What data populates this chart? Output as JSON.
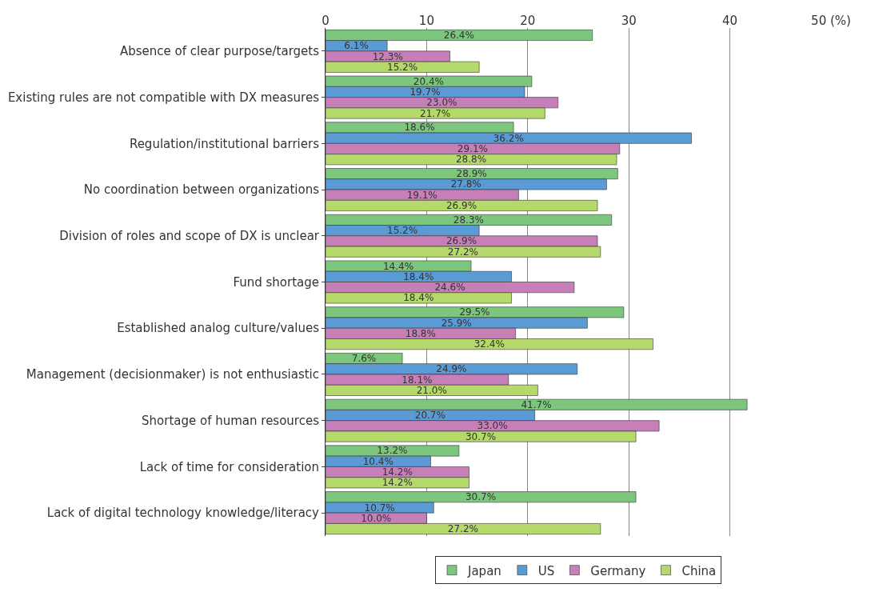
{
  "chart_data": {
    "type": "bar",
    "orientation": "horizontal",
    "categories": [
      "Absence of clear purpose/targets",
      "Existing rules are not compatible with DX measures",
      "Regulation/institutional barriers",
      "No coordination between organizations",
      "Division of roles and scope of DX is unclear",
      "Fund shortage",
      "Established analog culture/values",
      "Management (decisionmaker) is not enthusiastic",
      "Shortage of human resources",
      "Lack of time for consideration",
      "Lack of digital technology knowledge/literacy"
    ],
    "series": [
      {
        "name": "Japan",
        "color": "#7dc67d",
        "values": [
          26.4,
          20.4,
          18.6,
          28.9,
          28.3,
          14.4,
          29.5,
          7.6,
          41.7,
          13.2,
          30.7
        ],
        "value_labels": [
          "26.4%",
          "20.4%",
          "18.6%",
          "28.9%",
          "28.3%",
          "14.4%",
          "29.5%",
          "7.6%",
          "41.7%",
          "13.2%",
          "30.7%"
        ]
      },
      {
        "name": "US",
        "color": "#5b9bd5",
        "values": [
          6.1,
          19.7,
          36.2,
          27.8,
          15.2,
          18.4,
          25.9,
          24.9,
          20.7,
          10.4,
          10.7
        ],
        "value_labels": [
          "6.1%",
          "19.7%",
          "36.2%",
          "27.8%",
          "15.2%",
          "18.4%",
          "25.9%",
          "24.9%",
          "20.7%",
          "10.4%",
          "10.7%"
        ]
      },
      {
        "name": "Germany",
        "color": "#c77fb8",
        "values": [
          12.3,
          23.0,
          29.1,
          19.1,
          26.9,
          24.6,
          18.8,
          18.1,
          33.0,
          14.2,
          10.0
        ],
        "value_labels": [
          "12.3%",
          "23.0%",
          "29.1%",
          "19.1%",
          "26.9%",
          "24.6%",
          "18.8%",
          "18.1%",
          "33.0%",
          "14.2%",
          "10.0%"
        ]
      },
      {
        "name": "China",
        "color": "#b5d96b",
        "values": [
          15.2,
          21.7,
          28.8,
          26.9,
          27.2,
          18.4,
          32.4,
          21.0,
          30.7,
          14.2,
          27.2
        ],
        "value_labels": [
          "15.2%",
          "21.7%",
          "28.8%",
          "26.9%",
          "27.2%",
          "18.4%",
          "32.4%",
          "21.0%",
          "30.7%",
          "14.2%",
          "27.2%"
        ]
      }
    ],
    "xlim": [
      0,
      50
    ],
    "xticks": [
      0,
      10,
      20,
      30,
      40,
      {
        "value": 50,
        "label": "50 (%)"
      }
    ],
    "grid": "x",
    "legend": "bottom"
  }
}
